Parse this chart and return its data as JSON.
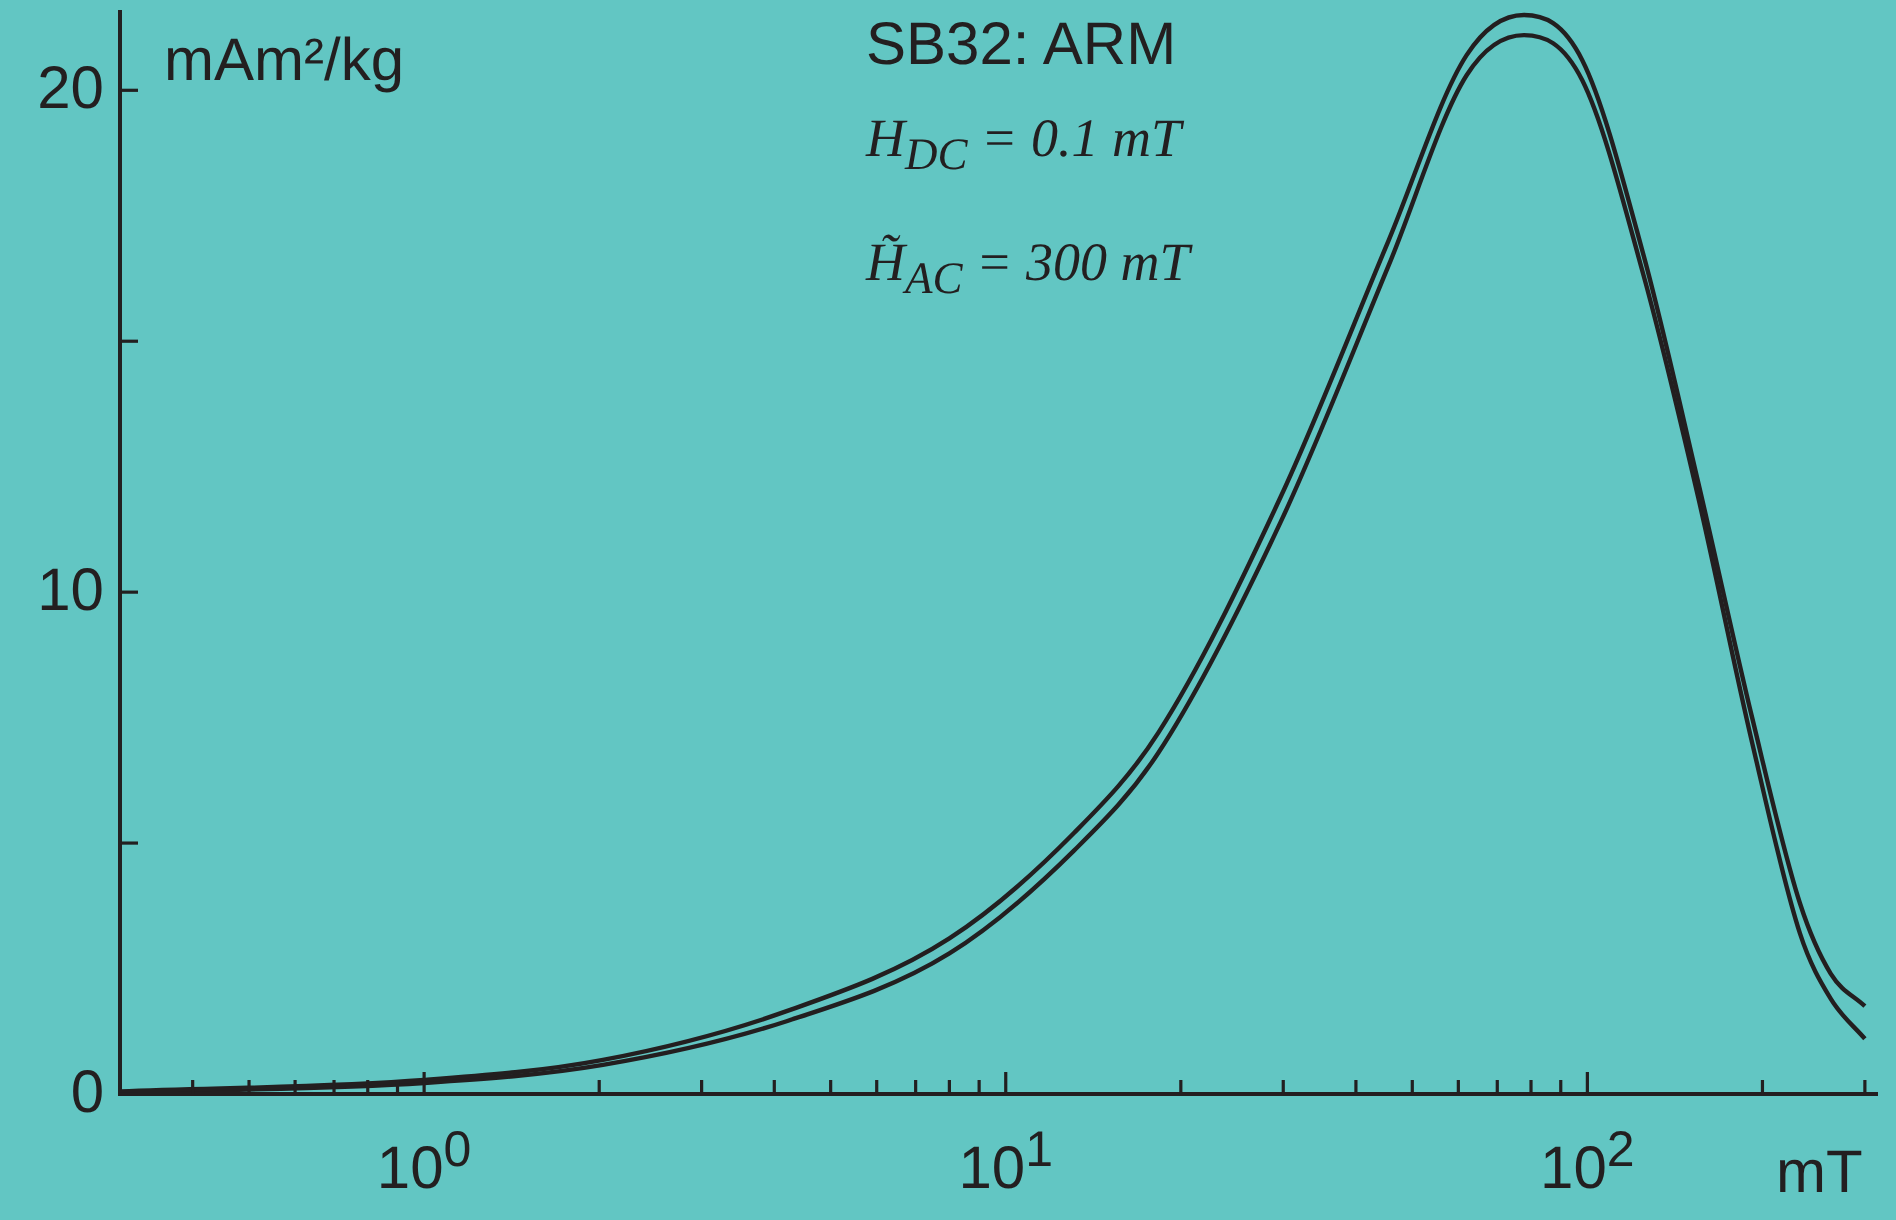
{
  "chart_data": {
    "type": "line",
    "title": "SB32: ARM",
    "xlabel": "mT",
    "ylabel": "mAm²/kg",
    "annotations": [
      "H$_{DC}$ = 0.1 mT",
      "H̃$_{AC}$ = 300 mT"
    ],
    "x": [
      0.3,
      1,
      2.03,
      4.2,
      8,
      13.1,
      18.3,
      29.7,
      45.5,
      62,
      77.8,
      98,
      125,
      155,
      192,
      232,
      262,
      300
    ],
    "series": [
      {
        "color": "#231f20",
        "values": [
          0.05,
          0.28,
          0.68,
          1.65,
          3.1,
          5.2,
          7.2,
          11.9,
          17.0,
          20.7,
          21.5,
          20.6,
          16.7,
          12.2,
          7.5,
          3.8,
          2.4,
          1.75
        ]
      },
      {
        "color": "#231f20",
        "values": [
          0.03,
          0.22,
          0.58,
          1.45,
          2.8,
          4.85,
          6.8,
          11.4,
          16.5,
          20.3,
          21.1,
          20.2,
          16.3,
          11.9,
          7.0,
          3.2,
          1.9,
          1.1
        ]
      }
    ],
    "log": "x",
    "xlim": [
      0.3,
      316
    ],
    "ylim": [
      0,
      21.6
    ],
    "xticks": [
      {
        "value": 0.4,
        "label": null
      },
      {
        "value": 0.5,
        "label": null
      },
      {
        "value": 0.6,
        "label": null
      },
      {
        "value": 0.7,
        "label": null
      },
      {
        "value": 0.8,
        "label": null
      },
      {
        "value": 0.9,
        "label": null
      },
      {
        "value": 1,
        "label": "10$^{0}$"
      },
      {
        "value": 2,
        "label": null
      },
      {
        "value": 3,
        "label": null
      },
      {
        "value": 4,
        "label": null
      },
      {
        "value": 5,
        "label": null
      },
      {
        "value": 6,
        "label": null
      },
      {
        "value": 7,
        "label": null
      },
      {
        "value": 8,
        "label": null
      },
      {
        "value": 9,
        "label": null
      },
      {
        "value": 10,
        "label": "10$^{1}$"
      },
      {
        "value": 20,
        "label": null
      },
      {
        "value": 30,
        "label": null
      },
      {
        "value": 40,
        "label": null
      },
      {
        "value": 50,
        "label": null
      },
      {
        "value": 60,
        "label": null
      },
      {
        "value": 70,
        "label": null
      },
      {
        "value": 80,
        "label": null
      },
      {
        "value": 90,
        "label": null
      },
      {
        "value": 100,
        "label": "10$^{2}$"
      },
      {
        "value": 200,
        "label": null
      },
      {
        "value": 300,
        "label": null
      }
    ],
    "yticks": [
      0,
      {
        "value": 5,
        "label": null
      },
      10,
      {
        "value": 15,
        "label": null
      },
      20
    ],
    "grid": false,
    "legend": false,
    "marker": "none",
    "line_style": "solid"
  }
}
